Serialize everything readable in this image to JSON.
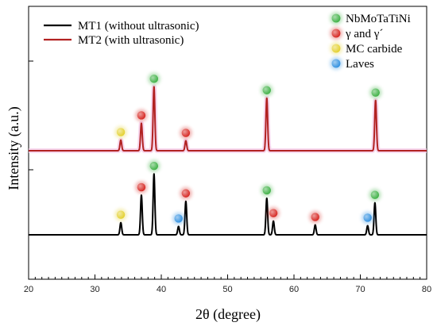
{
  "chart_data": {
    "type": "line",
    "title": "",
    "xlabel": "2θ (degree)",
    "ylabel": "Intensity (a.u.)",
    "xlim": [
      20,
      80
    ],
    "x_ticks": [
      20,
      30,
      40,
      50,
      60,
      70,
      80
    ],
    "series": [
      {
        "name": "MT1 (without ultrasonic)",
        "color": "#000000",
        "peaks": [
          {
            "x": 33.9,
            "h": 0.16
          },
          {
            "x": 37.0,
            "h": 0.52
          },
          {
            "x": 38.9,
            "h": 0.8
          },
          {
            "x": 42.6,
            "h": 0.11
          },
          {
            "x": 43.7,
            "h": 0.44
          },
          {
            "x": 55.9,
            "h": 0.48
          },
          {
            "x": 56.9,
            "h": 0.18
          },
          {
            "x": 63.2,
            "h": 0.13
          },
          {
            "x": 71.1,
            "h": 0.12
          },
          {
            "x": 72.2,
            "h": 0.42
          }
        ]
      },
      {
        "name": "MT2 (with ultrasonic)",
        "color": "#b22222",
        "peaks": [
          {
            "x": 33.9,
            "h": 0.14
          },
          {
            "x": 37.0,
            "h": 0.36
          },
          {
            "x": 38.9,
            "h": 0.84
          },
          {
            "x": 43.7,
            "h": 0.13
          },
          {
            "x": 55.9,
            "h": 0.69
          },
          {
            "x": 72.3,
            "h": 0.66
          }
        ]
      }
    ],
    "phases": [
      {
        "name": "NbMoTaTiNi",
        "color": "#3cb043"
      },
      {
        "name": "γ and γ´",
        "color": "#d6231e"
      },
      {
        "name": "MC carbide",
        "color": "#e3d02c"
      },
      {
        "name": "Laves",
        "color": "#2f8fe0"
      }
    ],
    "markers": [
      {
        "series": 0,
        "x": 33.9,
        "phase": 2
      },
      {
        "series": 0,
        "x": 37.0,
        "phase": 1
      },
      {
        "series": 0,
        "x": 38.9,
        "phase": 0
      },
      {
        "series": 0,
        "x": 42.6,
        "phase": 3
      },
      {
        "series": 0,
        "x": 43.7,
        "phase": 1
      },
      {
        "series": 0,
        "x": 55.9,
        "phase": 0
      },
      {
        "series": 0,
        "x": 56.9,
        "phase": 1
      },
      {
        "series": 0,
        "x": 63.2,
        "phase": 1
      },
      {
        "series": 0,
        "x": 71.1,
        "phase": 3
      },
      {
        "series": 0,
        "x": 72.2,
        "phase": 0
      },
      {
        "series": 1,
        "x": 33.9,
        "phase": 2
      },
      {
        "series": 1,
        "x": 37.0,
        "phase": 1
      },
      {
        "series": 1,
        "x": 38.9,
        "phase": 0
      },
      {
        "series": 1,
        "x": 43.7,
        "phase": 1
      },
      {
        "series": 1,
        "x": 55.9,
        "phase": 0
      },
      {
        "series": 1,
        "x": 72.3,
        "phase": 0
      }
    ],
    "grid": false,
    "legend_placement": "top"
  }
}
